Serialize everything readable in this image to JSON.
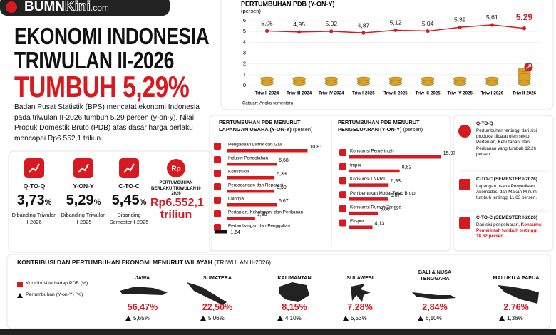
{
  "header": {
    "logo_main": "BUMN",
    "logo_accent": "Kini",
    "logo_suffix": ".com",
    "title_line1": "EKONOMI INDONESIA",
    "title_line2": "TRIWULAN II-2026",
    "headline": "TUMBUH 5,29%",
    "lead": "Badan Pusat Statistik (BPS) mencatat ekonomi Indonesia pada triwulan II-2026 tumbuh 5,29 persen (y-on-y). Nilai Produk Domestik Bruto (PDB) atas dasar harga berlaku mencapai Rp6.552,1 triliun."
  },
  "kpis": [
    {
      "label": "Q-TO-Q",
      "value": "3,73",
      "unit": "%",
      "note": "Dibanding Triwulan I-2026"
    },
    {
      "label": "Y-ON-Y",
      "value": "5,29",
      "unit": "%",
      "note": "Dibanding Triwulan II-2025"
    },
    {
      "label": "C-TO-C",
      "value": "5,45",
      "unit": "%",
      "note": "Dibanding Semester I-2025"
    },
    {
      "icon": "Rp",
      "label": "PERTUMBUHAN BERLAKU TRIWULAN II-2026",
      "value": "Rp6.552,1 triliun"
    }
  ],
  "chart_data": [
    {
      "type": "line",
      "title": "PERTUMBUHAN PDB (Y-ON-Y)",
      "subtitle": "(persen)",
      "categories": [
        "Triw II-2024",
        "Triw III-2024",
        "Triw IV-2024",
        "Triw I-2025",
        "Triw II-2025",
        "Triw III-2025",
        "Triw IV-2025",
        "Triw I-2026",
        "Triw II-2026"
      ],
      "values": [
        5.05,
        4.95,
        5.02,
        4.87,
        5.12,
        5.04,
        5.39,
        5.61,
        5.29
      ],
      "value_labels": [
        "5,05",
        "4,95",
        "5,02",
        "4,87",
        "5,12",
        "5,04",
        "5,39",
        "5,61",
        "5,29"
      ],
      "color": "#d71920",
      "ylim": [
        0,
        6
      ],
      "yticks": [
        0,
        1,
        2,
        3,
        4,
        5,
        6
      ],
      "grid": true,
      "note": "Catatan: Angka sementara"
    },
    {
      "type": "hbar",
      "title": "PERTUMBUHAN PDB MENURUT LAPANGAN USAHA (Y-ON-Y)",
      "unit_label": "(persen)",
      "categories": [
        "Pengadaan Listrik dan Gas",
        "Industri Pengolahan",
        "Konstruksi",
        "Perdagangan dan Reparasi",
        "Lainnya",
        "Pertanian, Kehutanan, dan Perikanan",
        "Pertambangan dan Penggalian"
      ],
      "values": [
        10.81,
        6.68,
        6.39,
        6.39,
        6.67,
        3.8,
        -1.64
      ],
      "value_labels": [
        "10,81",
        "6,68",
        "6,39",
        "6,39",
        "6,67",
        "3,80",
        "-1,64"
      ],
      "color": "#d71920",
      "negative_color": "#111111",
      "xlim": [
        -2,
        12
      ]
    },
    {
      "type": "hbar",
      "title": "PERTUMBUHAN PDB MENURUT PENGELUARAN (Y-ON-Y)",
      "unit_label": "(persen)",
      "categories": [
        "Konsumsi Pemerintah",
        "Impor",
        "Konsumsi LNPRT",
        "Pembentukan Modal Tetap Bruto",
        "Konsumsi Rumah Tangga",
        "Ekspor"
      ],
      "values": [
        15.97,
        8.82,
        6.93,
        6.87,
        5.06,
        4.13
      ],
      "value_labels": [
        "15,97",
        "8,82",
        "6,93",
        "6,87",
        "5,06",
        "4,13"
      ],
      "color": "#d71920",
      "negative_color": "#111111",
      "xlim": [
        0,
        16
      ]
    }
  ],
  "highlights": [
    {
      "label": "Q-TO-Q",
      "text": "Pertumbuhan tertinggi dari sisi produksi dicatat oleh sektor Pertanian, Kehutanan, dan Perikanan yang tumbuh 12,26 persen."
    },
    {
      "label": "C-TO-C (SEMESTER I-2026)",
      "text": "Lapangan usaha Penyediaan Akomodasi dan Makan Minum tumbuh tertinggi 11,83 persen."
    },
    {
      "label": "C-TO-C (SEMESTER I-2026)",
      "text": "Dari sisi pengeluaran,",
      "emphasis": "Konsumsi Pemerintah tumbuh tertinggi 18,62 persen."
    }
  ],
  "regional": {
    "title": "KONTRIBUSI DAN PERTUMBUHAN EKONOMI MENURUT WILAYAH",
    "period": "(TRIWULAN II-2026)",
    "legend": [
      "Kontribusi terhadap PDB (%)",
      "Pertumbuhan (Y-on-Y) (%)"
    ],
    "regions": [
      {
        "name": "JAWA",
        "contribution": "56,47%",
        "growth": "5,65%"
      },
      {
        "name": "SUMATERA",
        "contribution": "22,50%",
        "growth": "5,06%"
      },
      {
        "name": "KALIMANTAN",
        "contribution": "8,15%",
        "growth": "4,10%"
      },
      {
        "name": "SULAWESI",
        "contribution": "7,28%",
        "growth": "5,53%"
      },
      {
        "name": "BALI & NUSA TENGGARA",
        "contribution": "2,84%",
        "growth": "6,10%"
      },
      {
        "name": "MALUKU & PAPUA",
        "contribution": "2,76%",
        "growth": "1,36%"
      }
    ]
  }
}
